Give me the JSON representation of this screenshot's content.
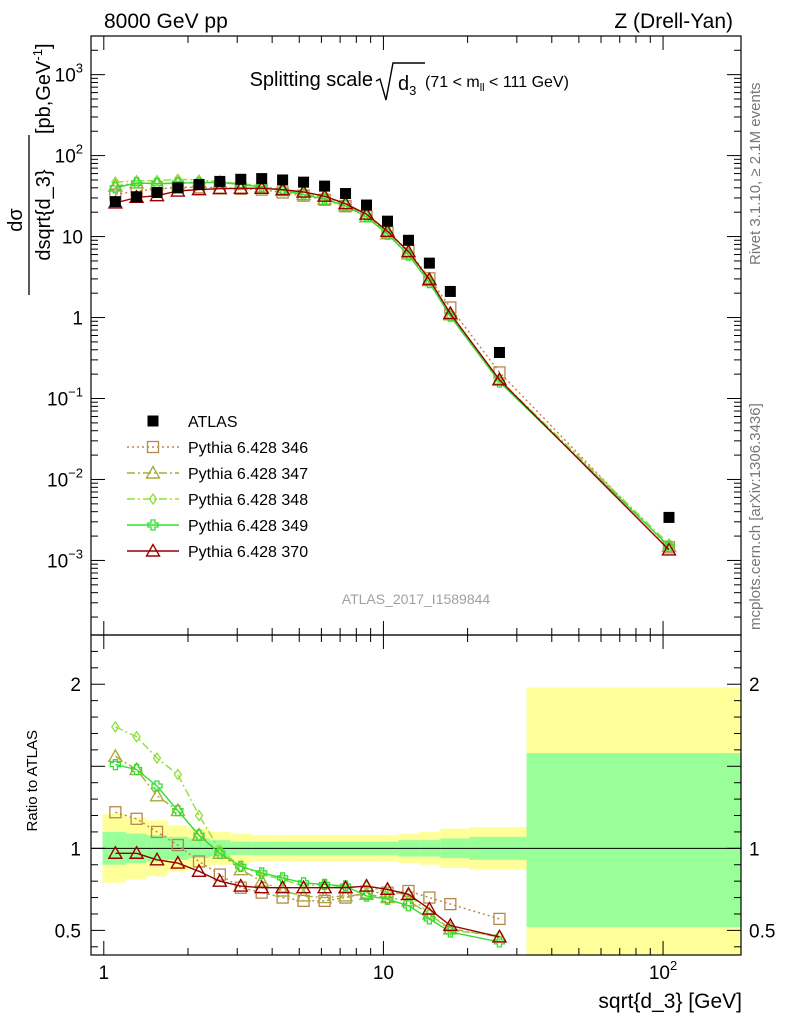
{
  "header": {
    "left": "8000 GeV pp",
    "right": "Z (Drell-Yan)"
  },
  "side_labels": {
    "rivet": "Rivet 3.1.10, ≥ 2.1M events",
    "mcplots": "mcplots.cern.ch [arXiv:1306.3436]"
  },
  "chart_data": [
    {
      "type": "line",
      "title_parts": {
        "main": "Splitting scale",
        "var": "d",
        "var_sub": "3",
        "range_pre": "(71 < m",
        "range_sub": "ll",
        "range_post": " < 111 GeV)"
      },
      "ylabel_parts": {
        "num": "dσ",
        "den": "dsqrt{d_3}",
        "unit_pre": "[pb,GeV",
        "unit_sup": "-1",
        "unit_post": "]"
      },
      "watermark": "ATLAS_2017_I1589844",
      "x_scale": "log",
      "y_scale": "log",
      "xlim": [
        0.9,
        190
      ],
      "ylim": [
        0.00012,
        3000
      ],
      "y_tick_labels": [
        {
          "value": 1000,
          "base": "10",
          "exp": "3"
        },
        {
          "value": 100,
          "base": "10",
          "exp": "2"
        },
        {
          "value": 10,
          "base": "10",
          "exp": ""
        },
        {
          "value": 1,
          "base": "1",
          "exp": ""
        },
        {
          "value": 0.1,
          "base": "10",
          "exp": "−1"
        },
        {
          "value": 0.01,
          "base": "10",
          "exp": "−2"
        },
        {
          "value": 0.001,
          "base": "10",
          "exp": "−3"
        }
      ],
      "x": [
        1.1,
        1.31,
        1.55,
        1.84,
        2.19,
        2.6,
        3.09,
        3.67,
        4.36,
        5.18,
        6.16,
        7.32,
        8.7,
        10.34,
        12.29,
        14.6,
        17.35,
        26,
        105
      ],
      "data": {
        "name": "ATLAS",
        "values": [
          27,
          31,
          35,
          40,
          44,
          48,
          51,
          52,
          50,
          47,
          42,
          34,
          24.5,
          15.5,
          9,
          4.7,
          2.1,
          0.37,
          0.0034
        ]
      },
      "series": [
        {
          "name": "Pythia 6.428 346",
          "color": "#b5884a",
          "marker": "square-open",
          "dash": "2,3",
          "values": [
            33,
            36.5,
            38.5,
            40.8,
            40.5,
            40.3,
            38.8,
            38,
            35,
            32,
            28.5,
            23.7,
            17.9,
            11.3,
            6.7,
            3.05,
            1.33,
            0.21,
            0.00145
          ]
        },
        {
          "name": "Pythia 6.428 347",
          "color": "#a9ab3a",
          "marker": "triangle-open",
          "dash": "8,3,2,3",
          "values": [
            42,
            46,
            45,
            45.5,
            47,
            46.5,
            44,
            41,
            37,
            33,
            29,
            24,
            17.6,
            10.8,
            6.1,
            2.85,
            1.08,
            0.17,
            0.0015
          ]
        },
        {
          "name": "Pythia 6.428 348",
          "color": "#8fe03a",
          "marker": "diamond-open",
          "dash": "8,3,2,3",
          "values": [
            47,
            49,
            49,
            51,
            50,
            47.5,
            45,
            42,
            38,
            34,
            30,
            25,
            18,
            11,
            6,
            2.8,
            1.05,
            0.17,
            0.0016
          ]
        },
        {
          "name": "Pythia 6.428 349",
          "color": "#33dd33",
          "marker": "cross",
          "dash": "",
          "values": [
            40,
            46,
            45,
            46,
            46,
            47,
            44,
            41,
            37,
            33,
            29,
            24,
            17.5,
            10.7,
            5.9,
            2.7,
            1.04,
            0.16,
            0.0015
          ]
        },
        {
          "name": "Pythia 6.428 370",
          "color": "#990000",
          "marker": "triangle-open",
          "dash": "",
          "values": [
            26,
            30.5,
            32,
            36.5,
            38,
            39,
            39.5,
            39.5,
            38,
            35.5,
            31.5,
            25.5,
            18.9,
            11.6,
            6.5,
            2.95,
            1.12,
            0.17,
            0.00135
          ]
        }
      ],
      "legend_position": "lower-left"
    },
    {
      "type": "line",
      "ylabel": "Ratio to ATLAS",
      "x_scale": "log",
      "xlabel": "sqrt{d_3} [GeV]",
      "xlim": [
        0.9,
        190
      ],
      "ylim": [
        0.35,
        2.3
      ],
      "y_tick_labels": [
        {
          "value": 2,
          "label": "2"
        },
        {
          "value": 1,
          "label": "1"
        },
        {
          "value": 0.5,
          "label": "0.5"
        }
      ],
      "x_tick_labels": [
        {
          "value": 1,
          "base": "1",
          "exp": ""
        },
        {
          "value": 10,
          "base": "10",
          "exp": ""
        },
        {
          "value": 100,
          "base": "10",
          "exp": "2"
        }
      ],
      "uncertainty_bins": {
        "edges": [
          0.99,
          1.2,
          1.42,
          1.69,
          2.01,
          2.39,
          2.84,
          3.38,
          4.01,
          4.77,
          5.67,
          6.74,
          8.01,
          9.52,
          11.31,
          13.44,
          15.98,
          20.3,
          32.5,
          190
        ],
        "stat_down": [
          0.9,
          0.91,
          0.92,
          0.93,
          0.94,
          0.95,
          0.96,
          0.96,
          0.96,
          0.96,
          0.96,
          0.96,
          0.96,
          0.96,
          0.95,
          0.95,
          0.94,
          0.93,
          0.52
        ],
        "stat_up": [
          1.1,
          1.09,
          1.08,
          1.07,
          1.06,
          1.05,
          1.04,
          1.04,
          1.04,
          1.04,
          1.04,
          1.04,
          1.04,
          1.04,
          1.05,
          1.05,
          1.06,
          1.07,
          1.58
        ],
        "total_down": [
          0.79,
          0.81,
          0.83,
          0.86,
          0.88,
          0.9,
          0.91,
          0.92,
          0.92,
          0.92,
          0.92,
          0.92,
          0.92,
          0.92,
          0.91,
          0.9,
          0.88,
          0.87,
          0.33
        ],
        "total_up": [
          1.21,
          1.19,
          1.17,
          1.14,
          1.12,
          1.1,
          1.09,
          1.08,
          1.08,
          1.08,
          1.08,
          1.08,
          1.08,
          1.08,
          1.09,
          1.1,
          1.12,
          1.13,
          1.98
        ],
        "stat_color": "#99ff99",
        "total_color": "#ffff99"
      },
      "x": [
        1.1,
        1.31,
        1.55,
        1.84,
        2.19,
        2.6,
        3.09,
        3.67,
        4.36,
        5.18,
        6.16,
        7.32,
        8.7,
        10.34,
        12.29,
        14.6,
        17.35,
        26
      ],
      "series": [
        {
          "name": "Pythia 6.428 346",
          "values": [
            1.22,
            1.18,
            1.1,
            1.02,
            0.92,
            0.84,
            0.76,
            0.73,
            0.7,
            0.68,
            0.68,
            0.7,
            0.73,
            0.73,
            0.74,
            0.7,
            0.66,
            0.57
          ]
        },
        {
          "name": "Pythia 6.428 347",
          "values": [
            1.56,
            1.48,
            1.32,
            1.23,
            1.08,
            0.97,
            0.87,
            0.8,
            0.74,
            0.71,
            0.7,
            0.71,
            0.72,
            0.7,
            0.68,
            0.6,
            0.51,
            0.46
          ]
        },
        {
          "name": "Pythia 6.428 348",
          "values": [
            1.74,
            1.68,
            1.55,
            1.45,
            1.2,
            0.99,
            0.89,
            0.84,
            0.81,
            0.77,
            0.78,
            0.76,
            0.77,
            0.73,
            0.72,
            0.6,
            0.5,
            0.47
          ]
        },
        {
          "name": "Pythia 6.428 349",
          "values": [
            1.51,
            1.48,
            1.38,
            1.23,
            1.08,
            0.97,
            0.89,
            0.85,
            0.82,
            0.79,
            0.78,
            0.77,
            0.71,
            0.69,
            0.65,
            0.57,
            0.49,
            0.43
          ]
        },
        {
          "name": "Pythia 6.428 370",
          "values": [
            0.97,
            0.97,
            0.93,
            0.91,
            0.86,
            0.8,
            0.77,
            0.76,
            0.76,
            0.76,
            0.76,
            0.76,
            0.77,
            0.75,
            0.72,
            0.63,
            0.53,
            0.46
          ]
        }
      ]
    }
  ]
}
